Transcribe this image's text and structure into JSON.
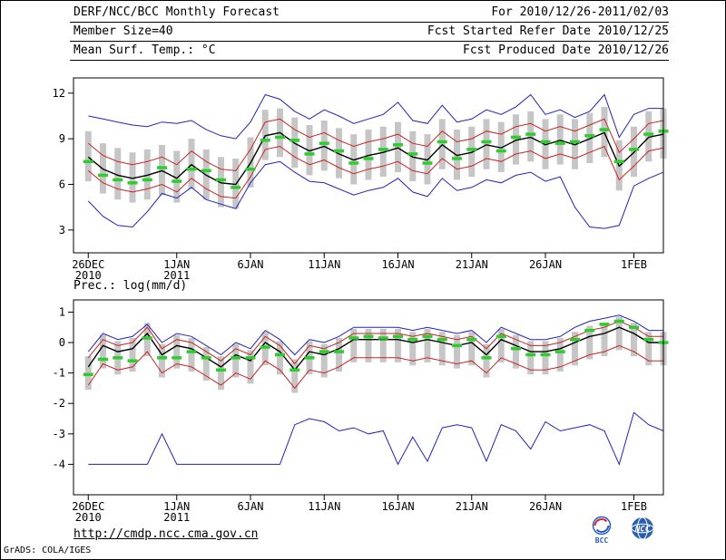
{
  "header": {
    "row1_left": "DERF/NCC/BCC Monthly Forecast",
    "row1_right": "For 2010/12/26-2011/02/03",
    "row2_left": "Member Size=40",
    "row2_right": "Fcst Started Refer Date 2010/12/25",
    "row3_left": "Mean Surf. Temp.: °C",
    "row3_right": "Fcst Produced Date 2010/12/26"
  },
  "footer": {
    "url": "http://cmdp.ncc.cma.gov.cn",
    "grads_credit": "GrADS: COLA/IGES",
    "logos": [
      {
        "name": "bcc-logo",
        "label": "BCC"
      },
      {
        "name": "ncc-logo",
        "label": "NCC"
      }
    ]
  },
  "colors": {
    "envelope_blue": "#2222bb",
    "bound_red": "#cc2222",
    "mean_black": "#000000",
    "obs_green": "#2ecc2e",
    "spread_gray": "#c6c6c6"
  },
  "chart_data": [
    {
      "type": "line",
      "name": "surface-temperature-chart",
      "title": "Mean Surf. Temp.: °C",
      "x_range": "2010-12-26 to 2011-02-03",
      "n_days": 40,
      "ylim": [
        1.5,
        13
      ],
      "yticks": [
        3,
        6,
        9,
        12
      ],
      "grid": false,
      "x_tick_days": [
        0,
        6,
        11,
        16,
        21,
        26,
        31,
        37
      ],
      "x_tick_labels": [
        "26DEC",
        "1JAN",
        "6JAN",
        "11JAN",
        "16JAN",
        "21JAN",
        "26JAN",
        "1FEB"
      ],
      "x_tick_sublabels": [
        "2010",
        "2011",
        "",
        "",
        "",
        "",
        "",
        ""
      ],
      "bars": {
        "name": "ensemble-spread-bars",
        "color": "#c6c6c6",
        "low": [
          6.2,
          5.4,
          5.0,
          4.8,
          5.0,
          5.3,
          4.8,
          5.7,
          5.0,
          4.5,
          4.4,
          5.8,
          7.6,
          7.8,
          7.1,
          6.6,
          6.9,
          6.4,
          6.0,
          6.3,
          6.5,
          6.8,
          6.2,
          6.0,
          7.0,
          6.3,
          6.5,
          7.0,
          6.8,
          7.3,
          7.5,
          7.0,
          7.3,
          7.0,
          7.4,
          7.8,
          5.6,
          6.5,
          7.5,
          7.7
        ],
        "high": [
          9.5,
          8.7,
          8.4,
          8.1,
          8.3,
          8.6,
          8.2,
          9.0,
          8.3,
          7.8,
          7.7,
          9.1,
          10.9,
          11.0,
          10.4,
          9.9,
          10.2,
          9.7,
          9.3,
          9.6,
          9.8,
          10.1,
          9.5,
          9.3,
          10.3,
          9.6,
          9.8,
          10.3,
          10.1,
          10.6,
          10.8,
          10.3,
          10.6,
          10.3,
          10.7,
          11.1,
          8.9,
          9.8,
          10.8,
          11.0
        ]
      },
      "series": [
        {
          "name": "ensemble-max",
          "color": "#2222bb",
          "width": 1,
          "values": [
            10.5,
            10.3,
            10.1,
            9.9,
            9.8,
            10.1,
            10.0,
            10.2,
            9.6,
            9.2,
            9.0,
            10.1,
            11.9,
            11.6,
            10.8,
            10.3,
            10.9,
            10.5,
            10.0,
            10.3,
            10.6,
            11.4,
            10.2,
            10.0,
            11.2,
            10.1,
            10.3,
            10.9,
            10.6,
            11.1,
            11.9,
            10.6,
            10.9,
            10.4,
            10.8,
            11.9,
            9.1,
            10.6,
            11.0,
            11.0
          ]
        },
        {
          "name": "ensemble-min",
          "color": "#2222bb",
          "width": 1,
          "values": [
            4.9,
            3.9,
            3.3,
            3.2,
            4.2,
            5.4,
            5.1,
            5.8,
            5.0,
            4.7,
            4.4,
            6.1,
            7.3,
            7.5,
            6.8,
            6.2,
            6.1,
            5.7,
            5.3,
            5.6,
            5.8,
            6.4,
            5.5,
            5.2,
            6.4,
            5.6,
            5.8,
            6.3,
            6.1,
            6.6,
            6.8,
            6.2,
            6.5,
            4.5,
            3.2,
            3.1,
            3.3,
            5.9,
            6.4,
            6.8
          ]
        },
        {
          "name": "upper-bound",
          "color": "#cc2222",
          "width": 1,
          "values": [
            8.7,
            7.9,
            7.5,
            7.3,
            7.5,
            7.8,
            7.3,
            8.2,
            7.5,
            7.0,
            6.9,
            8.3,
            10.1,
            10.3,
            9.6,
            9.1,
            9.4,
            8.9,
            8.5,
            8.8,
            9.0,
            9.3,
            8.7,
            8.5,
            9.5,
            8.8,
            9.0,
            9.5,
            9.3,
            9.8,
            10.0,
            9.5,
            9.8,
            9.5,
            9.9,
            10.3,
            8.1,
            9.0,
            10.0,
            10.2
          ]
        },
        {
          "name": "lower-bound",
          "color": "#cc2222",
          "width": 1,
          "values": [
            6.9,
            6.1,
            5.7,
            5.5,
            5.7,
            6.0,
            5.5,
            6.4,
            5.7,
            5.2,
            5.1,
            6.5,
            8.3,
            8.5,
            7.8,
            7.3,
            7.6,
            7.1,
            6.7,
            7.0,
            7.2,
            7.5,
            6.9,
            6.7,
            7.7,
            7.0,
            7.2,
            7.7,
            7.5,
            8.0,
            8.2,
            7.7,
            8.0,
            7.7,
            8.1,
            8.5,
            6.3,
            7.2,
            8.2,
            8.4
          ]
        },
        {
          "name": "ensemble-mean",
          "color": "#000000",
          "width": 1.4,
          "values": [
            7.8,
            7.0,
            6.6,
            6.4,
            6.6,
            6.9,
            6.4,
            7.3,
            6.6,
            6.1,
            6.0,
            7.4,
            9.2,
            9.4,
            8.7,
            8.2,
            8.5,
            8.0,
            7.6,
            7.9,
            8.1,
            8.4,
            7.8,
            7.6,
            8.6,
            7.9,
            8.1,
            8.6,
            8.4,
            8.9,
            9.1,
            8.6,
            8.9,
            8.6,
            9.0,
            9.4,
            7.2,
            8.1,
            9.1,
            9.3
          ]
        }
      ],
      "markers": {
        "name": "daily-median-green",
        "color": "#2ecc2e",
        "values": [
          7.5,
          6.6,
          6.3,
          6.1,
          6.3,
          7.1,
          6.2,
          7.0,
          6.9,
          6.3,
          5.8,
          7.0,
          8.9,
          9.1,
          8.9,
          8.0,
          8.7,
          8.2,
          7.4,
          7.7,
          8.3,
          8.6,
          8.0,
          7.4,
          8.8,
          7.7,
          8.3,
          8.8,
          8.2,
          9.1,
          9.3,
          8.8,
          8.7,
          8.8,
          9.2,
          9.6,
          7.5,
          8.3,
          9.3,
          9.5
        ]
      }
    },
    {
      "type": "line",
      "name": "precipitation-chart",
      "title": "Prec.: log(mm/d)",
      "x_range": "2010-12-26 to 2011-02-03",
      "n_days": 40,
      "ylim": [
        -5,
        1.4
      ],
      "yticks": [
        1,
        0,
        -1,
        -2,
        -3,
        -4
      ],
      "grid": false,
      "x_tick_days": [
        0,
        6,
        11,
        16,
        21,
        26,
        31,
        37
      ],
      "x_tick_labels": [
        "26DEC",
        "1JAN",
        "6JAN",
        "11JAN",
        "16JAN",
        "21JAN",
        "26JAN",
        "1FEB"
      ],
      "x_tick_sublabels": [
        "2010",
        "2011",
        "",
        "",
        "",
        "",
        "",
        ""
      ],
      "bars": {
        "name": "ensemble-spread-bars",
        "color": "#c6c6c6",
        "low": [
          -1.55,
          -0.85,
          -1.05,
          -0.95,
          -0.45,
          -1.15,
          -0.85,
          -0.95,
          -1.25,
          -1.55,
          -1.15,
          -1.35,
          -0.75,
          -1.05,
          -1.65,
          -1.05,
          -1.15,
          -0.95,
          -0.65,
          -0.65,
          -0.65,
          -0.65,
          -0.75,
          -0.65,
          -0.75,
          -0.85,
          -0.75,
          -1.15,
          -0.65,
          -0.85,
          -1.05,
          -1.05,
          -0.95,
          -0.75,
          -0.55,
          -0.45,
          -0.25,
          -0.45,
          -0.75,
          -0.75
        ],
        "high": [
          -0.45,
          0.25,
          0.05,
          0.15,
          0.65,
          -0.05,
          0.25,
          0.15,
          -0.15,
          -0.45,
          -0.05,
          -0.25,
          0.35,
          0.05,
          -0.55,
          0.05,
          -0.05,
          0.15,
          0.45,
          0.45,
          0.45,
          0.45,
          0.35,
          0.45,
          0.35,
          0.25,
          0.35,
          -0.05,
          0.45,
          0.25,
          0.05,
          0.05,
          0.15,
          0.35,
          0.55,
          0.65,
          0.85,
          0.65,
          0.35,
          0.35
        ]
      },
      "series": [
        {
          "name": "ensemble-max",
          "color": "#2222bb",
          "width": 1,
          "values": [
            -0.3,
            0.3,
            0.1,
            0.2,
            0.6,
            0.0,
            0.3,
            0.2,
            -0.1,
            -0.4,
            0.0,
            -0.2,
            0.4,
            0.1,
            -0.4,
            0.1,
            0.0,
            0.2,
            0.5,
            0.5,
            0.5,
            0.5,
            0.4,
            0.5,
            0.4,
            0.3,
            0.4,
            0.0,
            0.5,
            0.3,
            0.1,
            0.1,
            0.2,
            0.5,
            0.7,
            0.8,
            0.9,
            0.7,
            0.4,
            0.4
          ]
        },
        {
          "name": "ensemble-min",
          "color": "#2222bb",
          "width": 1,
          "values": [
            -4.0,
            -4.0,
            -4.0,
            -4.0,
            -4.0,
            -3.0,
            -4.0,
            -4.0,
            -4.0,
            -4.0,
            -4.0,
            -4.0,
            -4.0,
            -4.0,
            -2.7,
            -2.5,
            -2.6,
            -2.9,
            -2.8,
            -3.0,
            -2.9,
            -4.0,
            -3.1,
            -3.9,
            -2.8,
            -2.7,
            -2.8,
            -3.9,
            -2.7,
            -2.9,
            -3.5,
            -2.6,
            -2.9,
            -2.8,
            -2.7,
            -2.9,
            -4.0,
            -2.3,
            -2.7,
            -2.9
          ]
        },
        {
          "name": "upper-bound",
          "color": "#cc2222",
          "width": 1,
          "values": [
            -0.5,
            0.1,
            -0.1,
            0.0,
            0.5,
            -0.2,
            0.1,
            0.0,
            -0.3,
            -0.6,
            -0.2,
            -0.4,
            0.2,
            -0.1,
            -0.7,
            -0.1,
            -0.2,
            0.0,
            0.3,
            0.3,
            0.3,
            0.3,
            0.2,
            0.3,
            0.2,
            0.1,
            0.2,
            -0.2,
            0.3,
            0.1,
            -0.1,
            -0.1,
            0.0,
            0.2,
            0.4,
            0.5,
            0.7,
            0.5,
            0.2,
            0.2
          ]
        },
        {
          "name": "lower-bound",
          "color": "#cc2222",
          "width": 1,
          "values": [
            -1.4,
            -0.7,
            -0.9,
            -0.8,
            -0.3,
            -1.0,
            -0.7,
            -0.8,
            -1.1,
            -1.4,
            -1.0,
            -1.2,
            -0.6,
            -0.9,
            -1.5,
            -0.9,
            -1.0,
            -0.8,
            -0.5,
            -0.5,
            -0.5,
            -0.5,
            -0.6,
            -0.5,
            -0.6,
            -0.7,
            -0.6,
            -1.0,
            -0.5,
            -0.7,
            -0.9,
            -0.9,
            -0.8,
            -0.6,
            -0.4,
            -0.3,
            -0.1,
            -0.3,
            -0.6,
            -0.6
          ]
        },
        {
          "name": "ensemble-mean",
          "color": "#000000",
          "width": 1.4,
          "values": [
            -0.8,
            -0.1,
            -0.3,
            -0.2,
            0.3,
            -0.4,
            -0.1,
            -0.2,
            -0.5,
            -0.8,
            -0.4,
            -0.6,
            0.0,
            -0.3,
            -0.9,
            -0.3,
            -0.4,
            -0.2,
            0.1,
            0.1,
            0.1,
            0.1,
            0.0,
            0.1,
            0.0,
            -0.1,
            0.0,
            -0.4,
            0.1,
            -0.1,
            -0.3,
            -0.3,
            -0.2,
            0.0,
            0.2,
            0.3,
            0.5,
            0.3,
            0.0,
            0.0
          ]
        }
      ],
      "markers": {
        "name": "daily-median-green",
        "color": "#2ecc2e",
        "values": [
          -1.05,
          -0.55,
          -0.5,
          -0.6,
          0.15,
          -0.5,
          -0.5,
          -0.3,
          -0.5,
          -0.9,
          -0.5,
          -0.5,
          -0.15,
          -0.4,
          -0.9,
          -0.5,
          -0.3,
          -0.3,
          0.15,
          0.2,
          0.15,
          0.2,
          0.1,
          0.2,
          0.1,
          -0.1,
          0.1,
          -0.5,
          0.2,
          -0.2,
          -0.4,
          -0.4,
          -0.3,
          0.1,
          0.4,
          0.6,
          0.7,
          0.5,
          0.1,
          0.0
        ]
      }
    }
  ]
}
